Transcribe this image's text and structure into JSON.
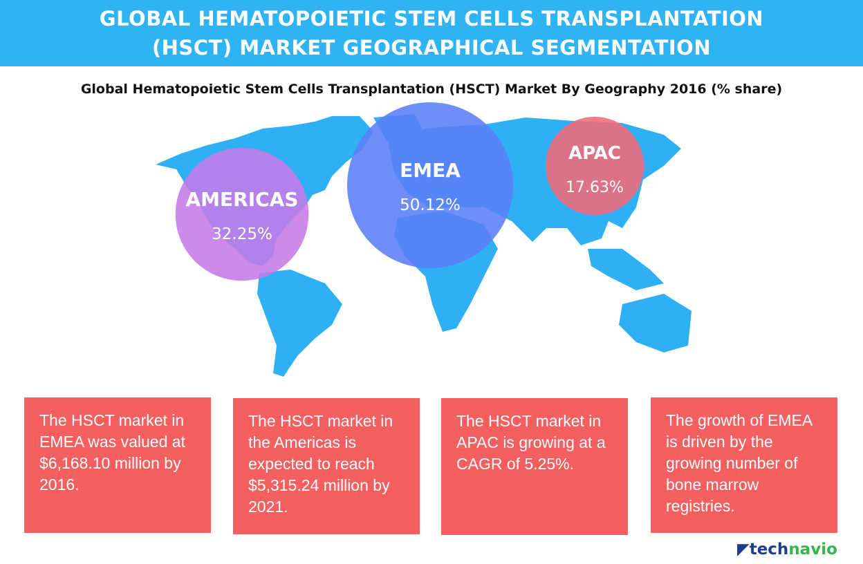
{
  "header": {
    "line1": "GLOBAL HEMATOPOIETIC STEM CELLS TRANSPLANTATION",
    "line2": "(HSCT) MARKET GEOGRAPHICAL SEGMENTATION"
  },
  "chart_data": {
    "type": "bubble",
    "title": "Global Hematopoietic Stem Cells Transplantation (HSCT) Market By Geography 2016 (% share)",
    "categories": [
      "AMERICAS",
      "EMEA",
      "APAC"
    ],
    "values": [
      32.25,
      50.12,
      17.63
    ],
    "labels": [
      "32.25%",
      "50.12%",
      "17.63%"
    ],
    "colors": [
      "#c57be8",
      "#5b7ef7",
      "#f26a78"
    ],
    "map_color": "#2fb0f5"
  },
  "boxes": [
    "The HSCT market in EMEA was valued at $6,168.10 million by 2016.",
    "The HSCT market in the Americas is expected to reach $5,315.24 million by 2021.",
    "The HSCT market in APAC is growing at a CAGR of 5.25%.",
    "The growth of EMEA is driven by the growing number of bone marrow registries."
  ],
  "logo": {
    "part1": "tech",
    "part2": "navio"
  },
  "box_color": "#f65f5f",
  "header_color": "#2fb3f2"
}
